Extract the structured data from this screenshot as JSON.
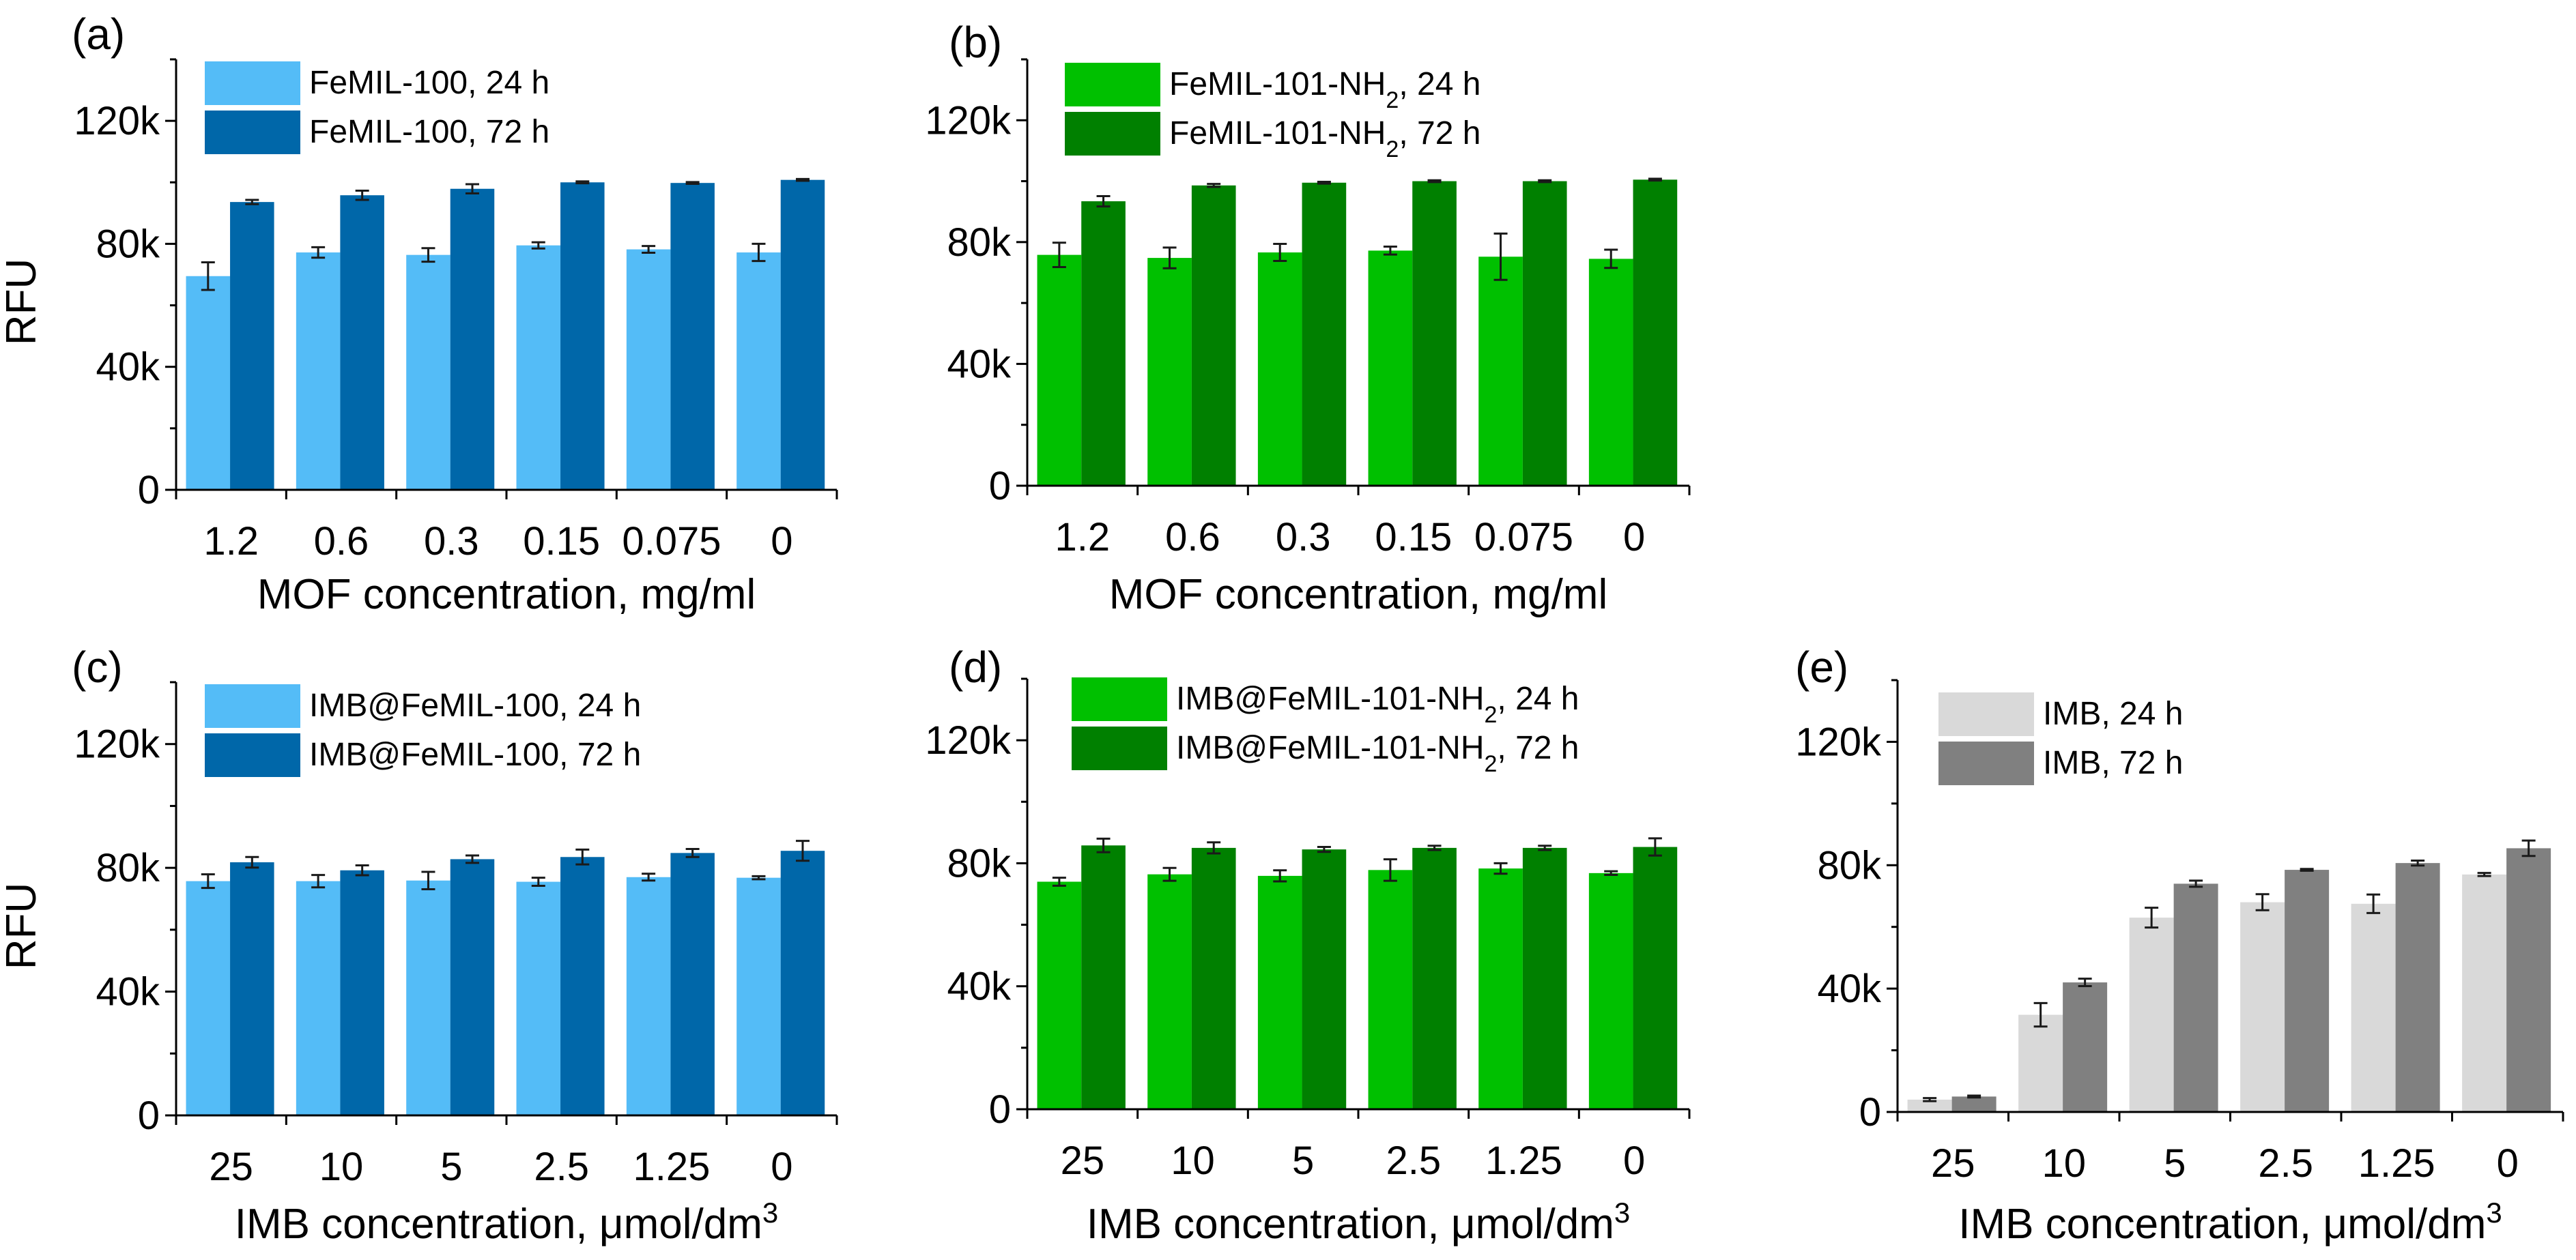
{
  "chart_data": [
    {
      "panel": "(a)",
      "type": "bar",
      "ylabel": "RFU",
      "xlabel_parts": [
        "MOF concentration, mg/ml"
      ],
      "categories": [
        "1.2",
        "0.6",
        "0.3",
        "0.15",
        "0.075",
        "0"
      ],
      "ylim": [
        0,
        140000
      ],
      "yticks": [
        {
          "value": 0,
          "label": "0"
        },
        {
          "value": 40000,
          "label": "40k"
        },
        {
          "value": 80000,
          "label": "80k"
        },
        {
          "value": 120000,
          "label": "120k"
        }
      ],
      "legend_position": "top-left",
      "series": [
        {
          "name": "FeMIL-100, 24 h",
          "legend_parts": [
            "FeMIL-100, 24 h"
          ],
          "color": "#54bcf7",
          "values": [
            69500,
            77200,
            76400,
            79500,
            78200,
            77200
          ],
          "errors": [
            4500,
            1700,
            2200,
            1000,
            1100,
            2800
          ]
        },
        {
          "name": "FeMIL-100, 72 h",
          "legend_parts": [
            "FeMIL-100, 72 h"
          ],
          "color": "#0067a9",
          "values": [
            93600,
            95800,
            97900,
            100000,
            99800,
            100800
          ],
          "errors": [
            700,
            1500,
            1500,
            300,
            300,
            300
          ]
        }
      ]
    },
    {
      "panel": "(b)",
      "type": "bar",
      "ylabel": "",
      "xlabel_parts": [
        "MOF concentration, mg/ml"
      ],
      "categories": [
        "1.2",
        "0.6",
        "0.3",
        "0.15",
        "0.075",
        "0"
      ],
      "ylim": [
        0,
        140000
      ],
      "yticks": [
        {
          "value": 0,
          "label": "0"
        },
        {
          "value": 40000,
          "label": "40k"
        },
        {
          "value": 80000,
          "label": "80k"
        },
        {
          "value": 120000,
          "label": "120k"
        }
      ],
      "legend_position": "top-left",
      "series": [
        {
          "name": "FeMIL-101-NH2, 24 h",
          "legend_parts": [
            "FeMIL-101-NH",
            "2",
            ", 24 h"
          ],
          "color": "#00c000",
          "values": [
            75800,
            74800,
            76600,
            77200,
            75200,
            74500
          ],
          "errors": [
            4000,
            3400,
            2800,
            1300,
            7600,
            3000
          ]
        },
        {
          "name": "FeMIL-101-NH2, 72 h",
          "legend_parts": [
            "FeMIL-101-NH",
            "2",
            ", 72 h"
          ],
          "color": "#008000",
          "values": [
            93400,
            98600,
            99500,
            100000,
            100000,
            100500
          ],
          "errors": [
            1700,
            500,
            300,
            300,
            300,
            300
          ]
        }
      ]
    },
    {
      "panel": "(c)",
      "type": "bar",
      "ylabel": "RFU",
      "xlabel_parts": [
        "IMB concentration, ",
        "μ",
        "mol/dm",
        "3"
      ],
      "categories": [
        "25",
        "10",
        "5",
        "2.5",
        "1.25",
        "0"
      ],
      "ylim": [
        0,
        140000
      ],
      "yticks": [
        {
          "value": 0,
          "label": "0"
        },
        {
          "value": 40000,
          "label": "40k"
        },
        {
          "value": 80000,
          "label": "80k"
        },
        {
          "value": 120000,
          "label": "120k"
        }
      ],
      "legend_position": "top-left",
      "series": [
        {
          "name": "IMB@FeMIL-100, 24 h",
          "legend_parts": [
            "IMB@FeMIL-100, 24 h"
          ],
          "color": "#54bcf7",
          "values": [
            75700,
            75700,
            75900,
            75500,
            77000,
            76800
          ],
          "errors": [
            2200,
            2000,
            2800,
            1300,
            1100,
            500
          ]
        },
        {
          "name": "IMB@FeMIL-100, 72 h",
          "legend_parts": [
            "IMB@FeMIL-100, 72 h"
          ],
          "color": "#0067a9",
          "values": [
            81800,
            79200,
            82800,
            83500,
            84800,
            85500
          ],
          "errors": [
            1700,
            1600,
            1200,
            2400,
            1300,
            3200
          ]
        }
      ]
    },
    {
      "panel": "(d)",
      "type": "bar",
      "ylabel": "",
      "xlabel_parts": [
        "IMB concentration, ",
        "μ",
        "mol/dm",
        "3"
      ],
      "categories": [
        "25",
        "10",
        "5",
        "2.5",
        "1.25",
        "0"
      ],
      "ylim": [
        0,
        140000
      ],
      "yticks": [
        {
          "value": 0,
          "label": "0"
        },
        {
          "value": 40000,
          "label": "40k"
        },
        {
          "value": 80000,
          "label": "80k"
        },
        {
          "value": 120000,
          "label": "120k"
        }
      ],
      "legend_position": "top-left",
      "series": [
        {
          "name": "IMB@FeMIL-101-NH2, 24 h",
          "legend_parts": [
            "IMB@FeMIL-101-NH",
            "2",
            ", 24 h"
          ],
          "color": "#00c000",
          "values": [
            74000,
            76400,
            75900,
            77800,
            78300,
            76800
          ],
          "errors": [
            1300,
            2100,
            1800,
            3500,
            1700,
            600
          ]
        },
        {
          "name": "IMB@FeMIL-101-NH2, 72 h",
          "legend_parts": [
            "IMB@FeMIL-101-NH",
            "2",
            ", 72 h"
          ],
          "color": "#008000",
          "values": [
            85800,
            85000,
            84500,
            85000,
            85000,
            85300
          ],
          "errors": [
            2200,
            1800,
            800,
            700,
            700,
            2800
          ]
        }
      ]
    },
    {
      "panel": "(e)",
      "type": "bar",
      "ylabel": "",
      "xlabel_parts": [
        "IMB concentration, ",
        "μ",
        "mol/dm",
        "3"
      ],
      "categories": [
        "25",
        "10",
        "5",
        "2.5",
        "1.25",
        "0"
      ],
      "ylim": [
        0,
        140000
      ],
      "yticks": [
        {
          "value": 0,
          "label": "0"
        },
        {
          "value": 40000,
          "label": "40k"
        },
        {
          "value": 80000,
          "label": "80k"
        },
        {
          "value": 120000,
          "label": "120k"
        }
      ],
      "legend_position": "top-left",
      "series": [
        {
          "name": "IMB, 24 h",
          "legend_parts": [
            "IMB, 24 h"
          ],
          "color": "#d9d9d9",
          "values": [
            4000,
            31500,
            63000,
            68000,
            67500,
            77000
          ],
          "errors": [
            500,
            3800,
            3200,
            2600,
            3000,
            500
          ]
        },
        {
          "name": "IMB, 72 h",
          "legend_parts": [
            "IMB, 72 h"
          ],
          "color": "#808080",
          "values": [
            5000,
            42000,
            74000,
            78500,
            80700,
            85500
          ],
          "errors": [
            300,
            1200,
            1000,
            300,
            800,
            2500
          ]
        }
      ]
    }
  ]
}
